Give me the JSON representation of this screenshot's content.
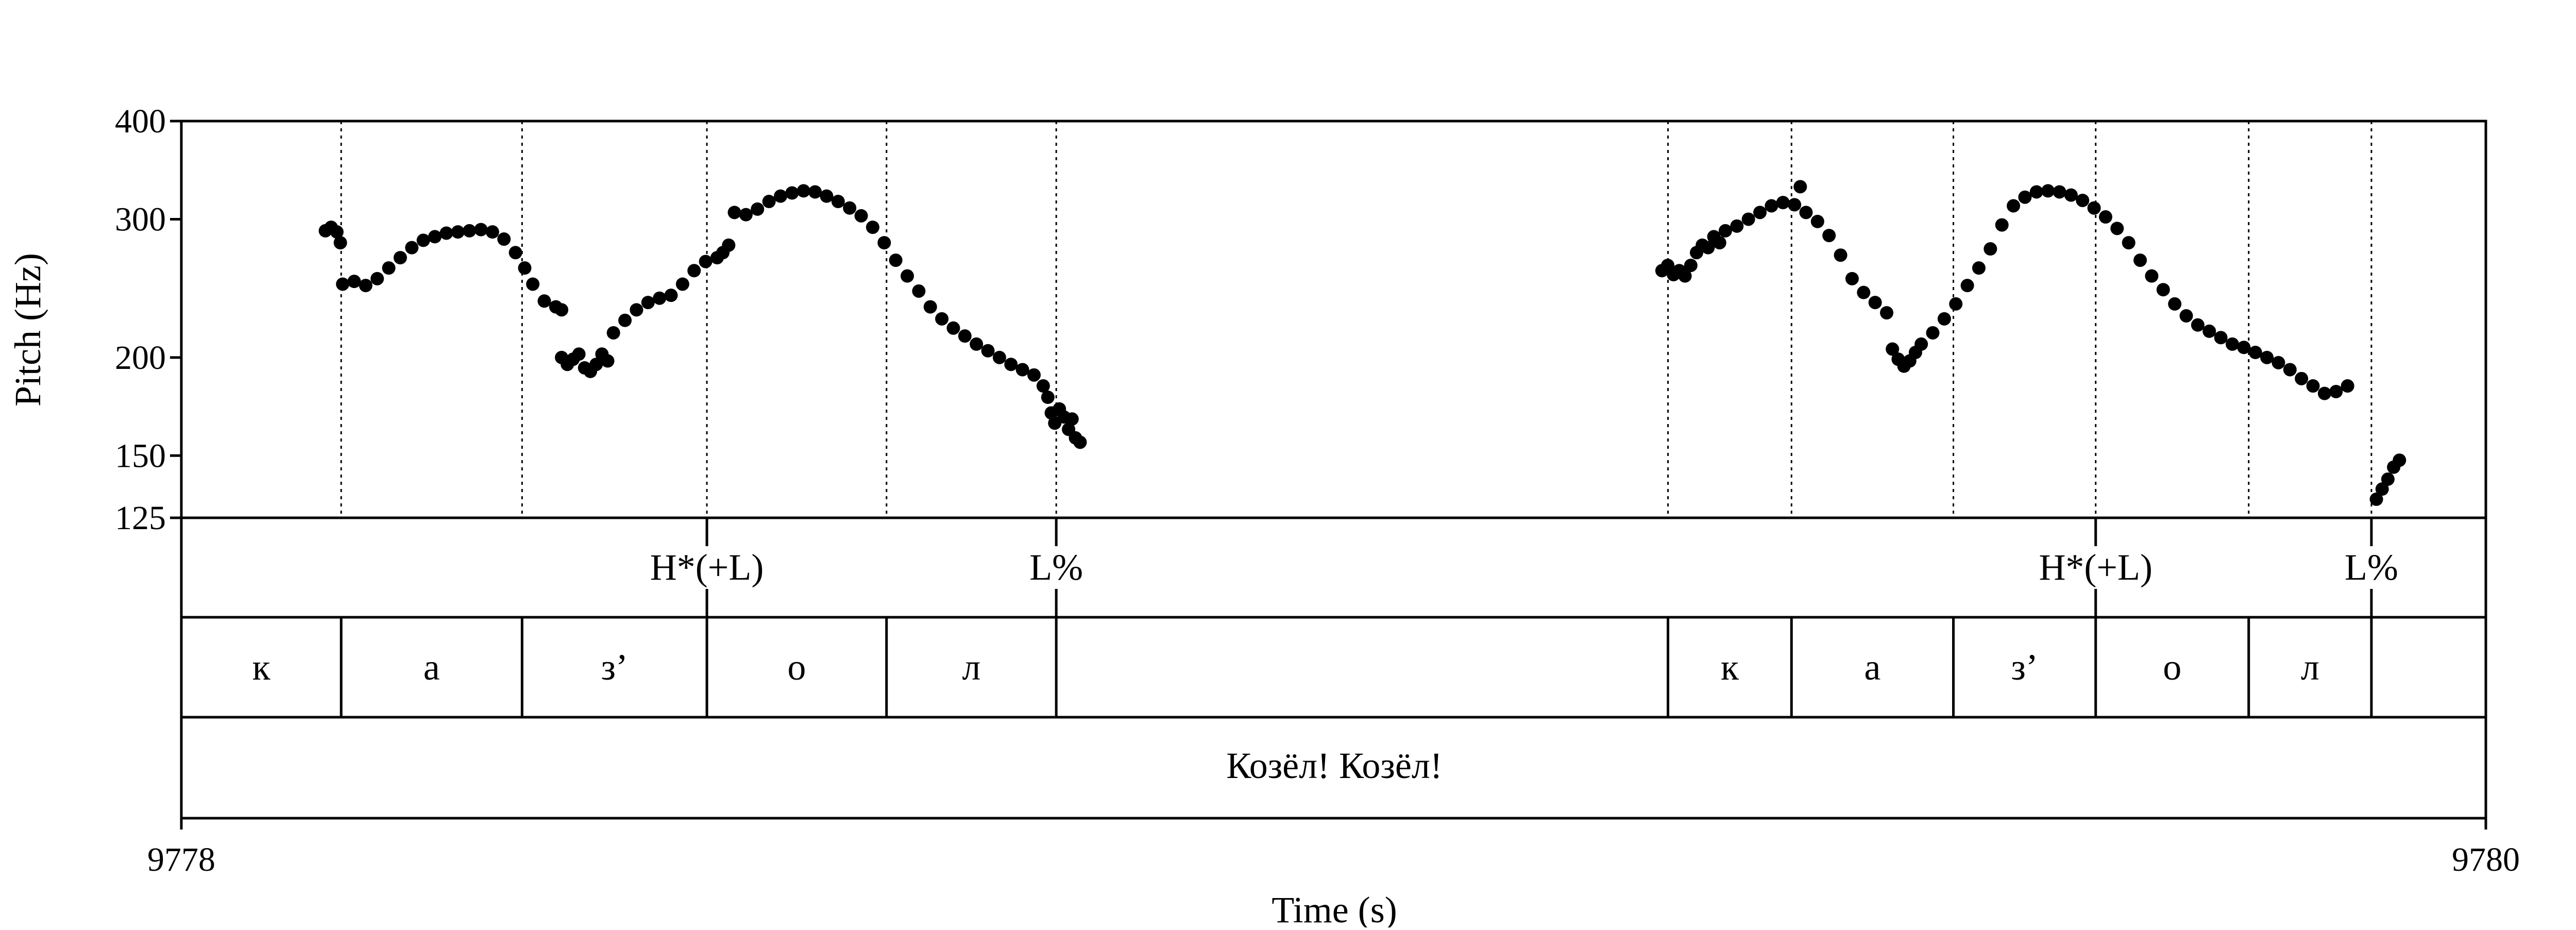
{
  "chart_data": {
    "type": "scatter",
    "ylabel": "Pitch (Hz)",
    "xlabel": "Time (s)",
    "xlim": [
      9778,
      9780
    ],
    "ylim": [
      125,
      400
    ],
    "y_scale": "log",
    "x_tick_labels": [
      "9778",
      "9780"
    ],
    "y_ticks": [
      125,
      150,
      200,
      300,
      400
    ],
    "y_tick_labels": [
      "125",
      "150",
      "200",
      "300",
      "400"
    ],
    "boundaries": [
      9778.1387,
      9778.2957,
      9778.4561,
      9778.612,
      9778.7593,
      9779.2902,
      9779.3974,
      9779.5379,
      9779.6614,
      9779.7942,
      9779.9007
    ],
    "tones": [
      {
        "time": 9778.4561,
        "label": "H*(+L)"
      },
      {
        "time": 9778.7593,
        "label": "L%"
      },
      {
        "time": 9779.6614,
        "label": "H*(+L)"
      },
      {
        "time": 9779.9007,
        "label": "L%"
      }
    ],
    "segments": [
      {
        "start": 9778.0,
        "end": 9778.1387,
        "label": "к"
      },
      {
        "start": 9778.1387,
        "end": 9778.2957,
        "label": "а"
      },
      {
        "start": 9778.2957,
        "end": 9778.4561,
        "label": "з’"
      },
      {
        "start": 9778.4561,
        "end": 9778.612,
        "label": "о"
      },
      {
        "start": 9778.612,
        "end": 9778.7593,
        "label": "л"
      },
      {
        "start": 9779.2902,
        "end": 9779.3974,
        "label": "к"
      },
      {
        "start": 9779.3974,
        "end": 9779.5379,
        "label": "а"
      },
      {
        "start": 9779.5379,
        "end": 9779.6614,
        "label": "з’"
      },
      {
        "start": 9779.6614,
        "end": 9779.7942,
        "label": "о"
      },
      {
        "start": 9779.7942,
        "end": 9779.9007,
        "label": "л"
      }
    ],
    "phrase": {
      "label": "Козёл! Козёл!"
    },
    "pitch_contour": [
      [
        9778.125,
        290
      ],
      [
        9778.13,
        293
      ],
      [
        9778.135,
        289
      ],
      [
        9778.138,
        280
      ],
      [
        9778.14,
        248
      ],
      [
        9778.15,
        250
      ],
      [
        9778.16,
        247
      ],
      [
        9778.17,
        252
      ],
      [
        9778.18,
        260
      ],
      [
        9778.19,
        268
      ],
      [
        9778.2,
        276
      ],
      [
        9778.21,
        282
      ],
      [
        9778.22,
        285
      ],
      [
        9778.23,
        288
      ],
      [
        9778.24,
        289
      ],
      [
        9778.25,
        290
      ],
      [
        9778.26,
        291
      ],
      [
        9778.27,
        289
      ],
      [
        9778.28,
        283
      ],
      [
        9778.29,
        272
      ],
      [
        9778.298,
        260
      ],
      [
        9778.305,
        248
      ],
      [
        9778.315,
        236
      ],
      [
        9778.325,
        232
      ],
      [
        9778.33,
        230
      ],
      [
        9778.33,
        200
      ],
      [
        9778.335,
        196
      ],
      [
        9778.34,
        199
      ],
      [
        9778.345,
        202
      ],
      [
        9778.35,
        194
      ],
      [
        9778.355,
        192
      ],
      [
        9778.36,
        196
      ],
      [
        9778.365,
        202
      ],
      [
        9778.37,
        198
      ],
      [
        9778.375,
        215
      ],
      [
        9778.385,
        223
      ],
      [
        9778.395,
        230
      ],
      [
        9778.405,
        235
      ],
      [
        9778.415,
        238
      ],
      [
        9778.425,
        240
      ],
      [
        9778.435,
        248
      ],
      [
        9778.445,
        258
      ],
      [
        9778.455,
        265
      ],
      [
        9778.465,
        268
      ],
      [
        9778.47,
        272
      ],
      [
        9778.475,
        278
      ],
      [
        9778.48,
        306
      ],
      [
        9778.49,
        304
      ],
      [
        9778.5,
        309
      ],
      [
        9778.51,
        316
      ],
      [
        9778.52,
        321
      ],
      [
        9778.53,
        324
      ],
      [
        9778.54,
        326
      ],
      [
        9778.55,
        325
      ],
      [
        9778.56,
        321
      ],
      [
        9778.57,
        316
      ],
      [
        9778.58,
        310
      ],
      [
        9778.59,
        303
      ],
      [
        9778.6,
        293
      ],
      [
        9778.61,
        280
      ],
      [
        9778.62,
        266
      ],
      [
        9778.63,
        254
      ],
      [
        9778.64,
        243
      ],
      [
        9778.65,
        232
      ],
      [
        9778.66,
        224
      ],
      [
        9778.67,
        218
      ],
      [
        9778.68,
        213
      ],
      [
        9778.69,
        208
      ],
      [
        9778.7,
        204
      ],
      [
        9778.71,
        200
      ],
      [
        9778.72,
        196
      ],
      [
        9778.73,
        193
      ],
      [
        9778.74,
        190
      ],
      [
        9778.748,
        184
      ],
      [
        9778.752,
        178
      ],
      [
        9778.755,
        170
      ],
      [
        9778.758,
        165
      ],
      [
        9778.762,
        172
      ],
      [
        9778.766,
        168
      ],
      [
        9778.77,
        162
      ],
      [
        9778.773,
        167
      ],
      [
        9778.776,
        158
      ],
      [
        9778.78,
        156
      ],
      [
        9779.285,
        258
      ],
      [
        9779.29,
        262
      ],
      [
        9779.295,
        255
      ],
      [
        9779.3,
        258
      ],
      [
        9779.305,
        254
      ],
      [
        9779.31,
        262
      ],
      [
        9779.315,
        272
      ],
      [
        9779.32,
        278
      ],
      [
        9779.325,
        276
      ],
      [
        9779.33,
        285
      ],
      [
        9779.335,
        280
      ],
      [
        9779.34,
        290
      ],
      [
        9779.35,
        294
      ],
      [
        9779.36,
        300
      ],
      [
        9779.37,
        306
      ],
      [
        9779.38,
        312
      ],
      [
        9779.39,
        315
      ],
      [
        9779.4,
        313
      ],
      [
        9779.405,
        330
      ],
      [
        9779.41,
        306
      ],
      [
        9779.42,
        298
      ],
      [
        9779.43,
        286
      ],
      [
        9779.44,
        270
      ],
      [
        9779.45,
        252
      ],
      [
        9779.46,
        242
      ],
      [
        9779.47,
        235
      ],
      [
        9779.48,
        228
      ],
      [
        9779.485,
        205
      ],
      [
        9779.49,
        199
      ],
      [
        9779.495,
        195
      ],
      [
        9779.5,
        198
      ],
      [
        9779.505,
        203
      ],
      [
        9779.51,
        208
      ],
      [
        9779.52,
        215
      ],
      [
        9779.53,
        224
      ],
      [
        9779.54,
        234
      ],
      [
        9779.55,
        247
      ],
      [
        9779.56,
        260
      ],
      [
        9779.57,
        275
      ],
      [
        9779.58,
        295
      ],
      [
        9779.59,
        312
      ],
      [
        9779.6,
        320
      ],
      [
        9779.61,
        325
      ],
      [
        9779.62,
        326
      ],
      [
        9779.63,
        325
      ],
      [
        9779.64,
        322
      ],
      [
        9779.65,
        317
      ],
      [
        9779.66,
        310
      ],
      [
        9779.67,
        302
      ],
      [
        9779.68,
        292
      ],
      [
        9779.69,
        280
      ],
      [
        9779.7,
        266
      ],
      [
        9779.71,
        254
      ],
      [
        9779.72,
        244
      ],
      [
        9779.73,
        234
      ],
      [
        9779.74,
        226
      ],
      [
        9779.75,
        220
      ],
      [
        9779.76,
        216
      ],
      [
        9779.77,
        212
      ],
      [
        9779.78,
        208
      ],
      [
        9779.79,
        206
      ],
      [
        9779.8,
        203
      ],
      [
        9779.81,
        200
      ],
      [
        9779.82,
        197
      ],
      [
        9779.83,
        193
      ],
      [
        9779.84,
        188
      ],
      [
        9779.85,
        184
      ],
      [
        9779.86,
        180
      ],
      [
        9779.87,
        181
      ],
      [
        9779.88,
        184
      ],
      [
        9779.905,
        132
      ],
      [
        9779.91,
        136
      ],
      [
        9779.915,
        140
      ],
      [
        9779.92,
        145
      ],
      [
        9779.925,
        148
      ]
    ]
  }
}
